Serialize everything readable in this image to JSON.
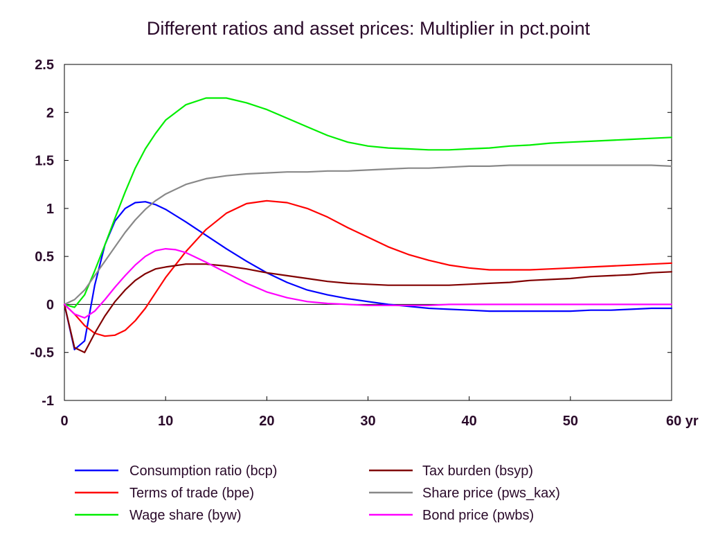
{
  "chart_data": {
    "type": "line",
    "title": "Different ratios and asset prices: Multiplier in pct.point",
    "xlabel": "",
    "ylabel": "",
    "xlim": [
      0,
      60
    ],
    "ylim": [
      -1,
      2.5
    ],
    "x_ticks": [
      0,
      10,
      20,
      30,
      40,
      50,
      60
    ],
    "x_tick_labels": [
      "0",
      "10",
      "20",
      "30",
      "40",
      "50",
      "60 yr"
    ],
    "y_ticks": [
      2.5,
      2,
      1.5,
      1,
      0.5,
      0,
      -0.5,
      -1
    ],
    "y_tick_labels": [
      "2.5",
      "2",
      "1.5",
      "1",
      "0.5",
      "0",
      "-0.5",
      "-1"
    ],
    "grid": false,
    "zero_line": true,
    "legend_position": "bottom",
    "series": [
      {
        "name": "Consumption ratio (bcp)",
        "color": "#0000ff",
        "points": [
          [
            0,
            0
          ],
          [
            1,
            -0.47
          ],
          [
            2,
            -0.38
          ],
          [
            3,
            0.2
          ],
          [
            4,
            0.62
          ],
          [
            5,
            0.87
          ],
          [
            6,
            1.0
          ],
          [
            7,
            1.06
          ],
          [
            8,
            1.07
          ],
          [
            9,
            1.04
          ],
          [
            10,
            0.99
          ],
          [
            12,
            0.86
          ],
          [
            14,
            0.72
          ],
          [
            16,
            0.58
          ],
          [
            18,
            0.45
          ],
          [
            20,
            0.33
          ],
          [
            22,
            0.23
          ],
          [
            24,
            0.15
          ],
          [
            26,
            0.1
          ],
          [
            28,
            0.06
          ],
          [
            30,
            0.03
          ],
          [
            32,
            0.0
          ],
          [
            34,
            -0.02
          ],
          [
            36,
            -0.04
          ],
          [
            38,
            -0.05
          ],
          [
            40,
            -0.06
          ],
          [
            42,
            -0.07
          ],
          [
            44,
            -0.07
          ],
          [
            46,
            -0.07
          ],
          [
            48,
            -0.07
          ],
          [
            50,
            -0.07
          ],
          [
            52,
            -0.06
          ],
          [
            54,
            -0.06
          ],
          [
            56,
            -0.05
          ],
          [
            58,
            -0.04
          ],
          [
            60,
            -0.04
          ]
        ]
      },
      {
        "name": "Terms of trade (bpe)",
        "color": "#ff0000",
        "points": [
          [
            0,
            0
          ],
          [
            1,
            -0.1
          ],
          [
            2,
            -0.22
          ],
          [
            3,
            -0.3
          ],
          [
            4,
            -0.33
          ],
          [
            5,
            -0.32
          ],
          [
            6,
            -0.27
          ],
          [
            7,
            -0.17
          ],
          [
            8,
            -0.04
          ],
          [
            9,
            0.12
          ],
          [
            10,
            0.28
          ],
          [
            12,
            0.55
          ],
          [
            14,
            0.78
          ],
          [
            16,
            0.95
          ],
          [
            18,
            1.05
          ],
          [
            20,
            1.08
          ],
          [
            22,
            1.06
          ],
          [
            24,
            1.0
          ],
          [
            26,
            0.91
          ],
          [
            28,
            0.8
          ],
          [
            30,
            0.7
          ],
          [
            32,
            0.6
          ],
          [
            34,
            0.52
          ],
          [
            36,
            0.46
          ],
          [
            38,
            0.41
          ],
          [
            40,
            0.38
          ],
          [
            42,
            0.36
          ],
          [
            44,
            0.36
          ],
          [
            46,
            0.36
          ],
          [
            48,
            0.37
          ],
          [
            50,
            0.38
          ],
          [
            52,
            0.39
          ],
          [
            54,
            0.4
          ],
          [
            56,
            0.41
          ],
          [
            58,
            0.42
          ],
          [
            60,
            0.43
          ]
        ]
      },
      {
        "name": "Wage share (byw)",
        "color": "#00ee00",
        "points": [
          [
            0,
            0
          ],
          [
            1,
            -0.03
          ],
          [
            2,
            0.1
          ],
          [
            3,
            0.35
          ],
          [
            4,
            0.62
          ],
          [
            5,
            0.9
          ],
          [
            6,
            1.17
          ],
          [
            7,
            1.42
          ],
          [
            8,
            1.62
          ],
          [
            9,
            1.78
          ],
          [
            10,
            1.92
          ],
          [
            12,
            2.08
          ],
          [
            14,
            2.15
          ],
          [
            16,
            2.15
          ],
          [
            18,
            2.1
          ],
          [
            20,
            2.03
          ],
          [
            22,
            1.94
          ],
          [
            24,
            1.85
          ],
          [
            26,
            1.76
          ],
          [
            28,
            1.69
          ],
          [
            30,
            1.65
          ],
          [
            32,
            1.63
          ],
          [
            34,
            1.62
          ],
          [
            36,
            1.61
          ],
          [
            38,
            1.61
          ],
          [
            40,
            1.62
          ],
          [
            42,
            1.63
          ],
          [
            44,
            1.65
          ],
          [
            46,
            1.66
          ],
          [
            48,
            1.68
          ],
          [
            50,
            1.69
          ],
          [
            52,
            1.7
          ],
          [
            54,
            1.71
          ],
          [
            56,
            1.72
          ],
          [
            58,
            1.73
          ],
          [
            60,
            1.74
          ]
        ]
      },
      {
        "name": "Tax burden (bsyp)",
        "color": "#800000",
        "points": [
          [
            0,
            0
          ],
          [
            1,
            -0.45
          ],
          [
            2,
            -0.5
          ],
          [
            3,
            -0.3
          ],
          [
            4,
            -0.12
          ],
          [
            5,
            0.03
          ],
          [
            6,
            0.15
          ],
          [
            7,
            0.25
          ],
          [
            8,
            0.32
          ],
          [
            9,
            0.37
          ],
          [
            10,
            0.39
          ],
          [
            12,
            0.42
          ],
          [
            14,
            0.42
          ],
          [
            16,
            0.4
          ],
          [
            18,
            0.37
          ],
          [
            20,
            0.33
          ],
          [
            22,
            0.3
          ],
          [
            24,
            0.27
          ],
          [
            26,
            0.24
          ],
          [
            28,
            0.22
          ],
          [
            30,
            0.21
          ],
          [
            32,
            0.2
          ],
          [
            34,
            0.2
          ],
          [
            36,
            0.2
          ],
          [
            38,
            0.2
          ],
          [
            40,
            0.21
          ],
          [
            42,
            0.22
          ],
          [
            44,
            0.23
          ],
          [
            46,
            0.25
          ],
          [
            48,
            0.26
          ],
          [
            50,
            0.27
          ],
          [
            52,
            0.29
          ],
          [
            54,
            0.3
          ],
          [
            56,
            0.31
          ],
          [
            58,
            0.33
          ],
          [
            60,
            0.34
          ]
        ]
      },
      {
        "name": "Share price (pws_kax)",
        "color": "#888888",
        "points": [
          [
            0,
            0
          ],
          [
            1,
            0.05
          ],
          [
            2,
            0.15
          ],
          [
            3,
            0.3
          ],
          [
            4,
            0.45
          ],
          [
            5,
            0.6
          ],
          [
            6,
            0.75
          ],
          [
            7,
            0.88
          ],
          [
            8,
            0.99
          ],
          [
            9,
            1.08
          ],
          [
            10,
            1.15
          ],
          [
            12,
            1.25
          ],
          [
            14,
            1.31
          ],
          [
            16,
            1.34
          ],
          [
            18,
            1.36
          ],
          [
            20,
            1.37
          ],
          [
            22,
            1.38
          ],
          [
            24,
            1.38
          ],
          [
            26,
            1.39
          ],
          [
            28,
            1.39
          ],
          [
            30,
            1.4
          ],
          [
            32,
            1.41
          ],
          [
            34,
            1.42
          ],
          [
            36,
            1.42
          ],
          [
            38,
            1.43
          ],
          [
            40,
            1.44
          ],
          [
            42,
            1.44
          ],
          [
            44,
            1.45
          ],
          [
            46,
            1.45
          ],
          [
            48,
            1.45
          ],
          [
            50,
            1.45
          ],
          [
            52,
            1.45
          ],
          [
            54,
            1.45
          ],
          [
            56,
            1.45
          ],
          [
            58,
            1.45
          ],
          [
            60,
            1.44
          ]
        ]
      },
      {
        "name": "Bond price (pwbs)",
        "color": "#ff00ff",
        "points": [
          [
            0,
            0
          ],
          [
            1,
            -0.1
          ],
          [
            2,
            -0.14
          ],
          [
            3,
            -0.07
          ],
          [
            4,
            0.05
          ],
          [
            5,
            0.18
          ],
          [
            6,
            0.3
          ],
          [
            7,
            0.41
          ],
          [
            8,
            0.5
          ],
          [
            9,
            0.56
          ],
          [
            10,
            0.58
          ],
          [
            11,
            0.57
          ],
          [
            12,
            0.54
          ],
          [
            14,
            0.44
          ],
          [
            16,
            0.33
          ],
          [
            18,
            0.22
          ],
          [
            20,
            0.13
          ],
          [
            22,
            0.07
          ],
          [
            24,
            0.03
          ],
          [
            26,
            0.01
          ],
          [
            28,
            0.0
          ],
          [
            30,
            -0.01
          ],
          [
            32,
            -0.01
          ],
          [
            34,
            -0.01
          ],
          [
            36,
            -0.01
          ],
          [
            38,
            0.0
          ],
          [
            40,
            0.0
          ],
          [
            45,
            0.0
          ],
          [
            50,
            0.0
          ],
          [
            55,
            0.0
          ],
          [
            60,
            0.0
          ]
        ]
      }
    ]
  }
}
